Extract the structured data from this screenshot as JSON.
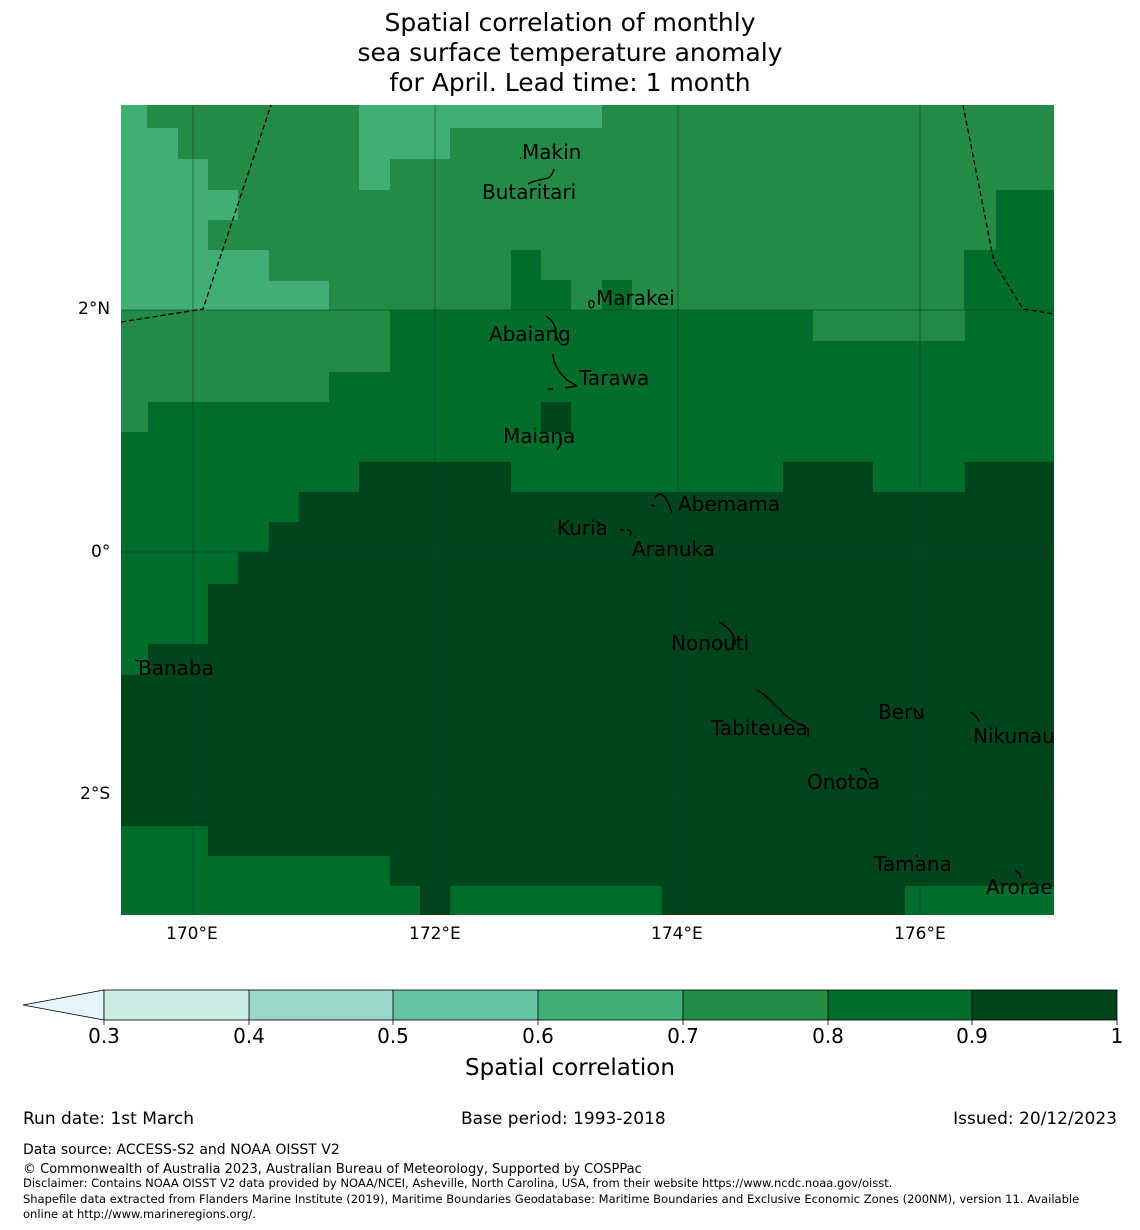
{
  "title": {
    "line1": "Spatial correlation of monthly",
    "line2": "sea surface temperature anomaly",
    "line3": "for April. Lead time: 1 month"
  },
  "axes": {
    "x_ticks": [
      "170°E",
      "172°E",
      "174°E",
      "176°E"
    ],
    "y_ticks": [
      "2°N",
      "0°",
      "2°S"
    ]
  },
  "places": [
    "Makin",
    "Butaritari",
    "Marakei",
    "Abaiang",
    "Tarawa",
    "Maiana",
    "Abemama",
    "Kuria",
    "Aranuka",
    "Nonouti",
    "Banaba",
    "Tabiteuea",
    "Beru",
    "Nikunau",
    "Onotoa",
    "Tamana",
    "Arorae"
  ],
  "colors": {
    "below": "#e5f5f9",
    "c03": "#ccece6",
    "c04": "#99d8c9",
    "c05": "#66c2a4",
    "c06": "#41ae76",
    "c07": "#238b45",
    "c08": "#006d2c",
    "c09": "#00441b"
  },
  "colorbar": {
    "ticks": [
      "0.3",
      "0.4",
      "0.5",
      "0.6",
      "0.7",
      "0.8",
      "0.9",
      "1"
    ],
    "label": "Spatial correlation"
  },
  "footer": {
    "run_date": "Run date: 1st March",
    "base_period": "Base period: 1993-2018",
    "issued": "Issued: 20/12/2023",
    "data_source": "Data source: ACCESS-S2 and NOAA OISST V2",
    "copyright": "© Commonwealth of Australia 2023, Australian Bureau of Meteorology, Supported by COSPPac",
    "disclaimer": "Disclaimer: Contains NOAA OISST V2 data provided by NOAA/NCEI, Asheville, North Carolina, USA, from their website https://www.ncdc.noaa.gov/oisst.",
    "shapefile1": "Shapefile data extracted from Flanders Marine Institute (2019), Maritime Boundaries Geodatabase: Maritime Boundaries and Exclusive Economic Zones (200NM), version 11. Available",
    "shapefile2": "online at http://www.marineregions.org/."
  }
}
